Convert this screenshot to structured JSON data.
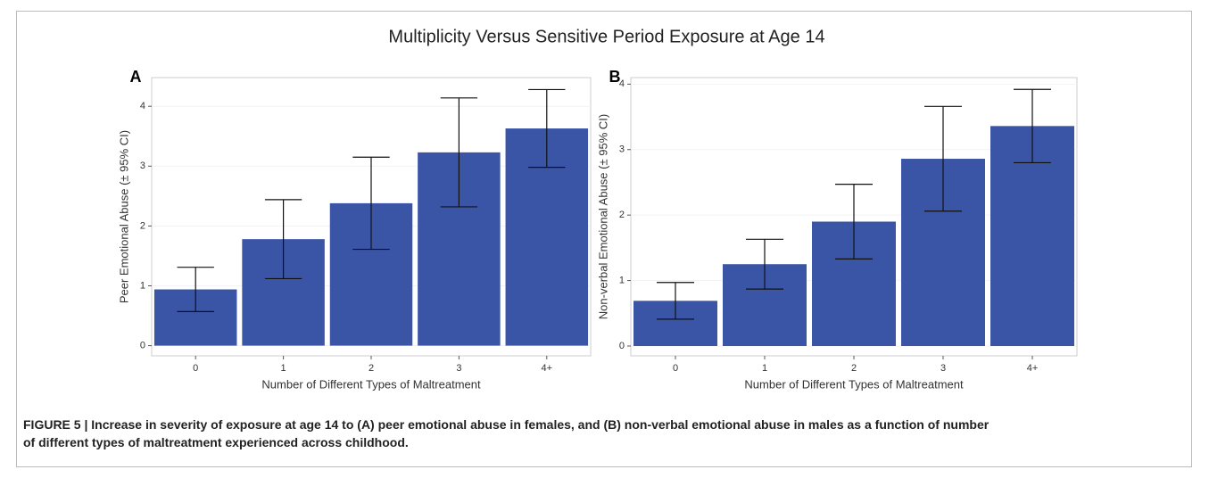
{
  "title": "Multiplicity Versus Sensitive Period Exposure at Age 14",
  "caption": "FIGURE 5 | Increase in severity of exposure at age 14 to (A) peer emotional abuse in females, and (B) non-verbal emotional abuse in males as a function of number of different types of maltreatment experienced across childhood.",
  "chart_data": [
    {
      "type": "bar",
      "panel": "A",
      "ylabel": "Peer Emotional Abuse (± 95% CI)",
      "xlabel": "Number of Different Types of Maltreatment",
      "categories": [
        "0",
        "1",
        "2",
        "3",
        "4+"
      ],
      "values": [
        0.94,
        1.78,
        2.38,
        3.23,
        3.63
      ],
      "errors": [
        0.37,
        0.66,
        0.77,
        0.91,
        0.65
      ],
      "color": "#3b55a6",
      "ylim": [
        -0.17,
        4.48
      ],
      "yticks": [
        0,
        1,
        2,
        3,
        4
      ],
      "grid": true
    },
    {
      "type": "bar",
      "panel": "B",
      "ylabel": "Non-verbal Emotional Abuse (± 95% CI)",
      "xlabel": "Number of Different Types of Maltreatment",
      "categories": [
        "0",
        "1",
        "2",
        "3",
        "4+"
      ],
      "values": [
        0.69,
        1.25,
        1.9,
        2.86,
        3.36
      ],
      "errors": [
        0.28,
        0.38,
        0.57,
        0.8,
        0.56
      ],
      "color": "#3b55a6",
      "ylim": [
        -0.15,
        4.1
      ],
      "yticks": [
        0,
        1,
        2,
        3,
        4
      ],
      "grid": true
    }
  ]
}
